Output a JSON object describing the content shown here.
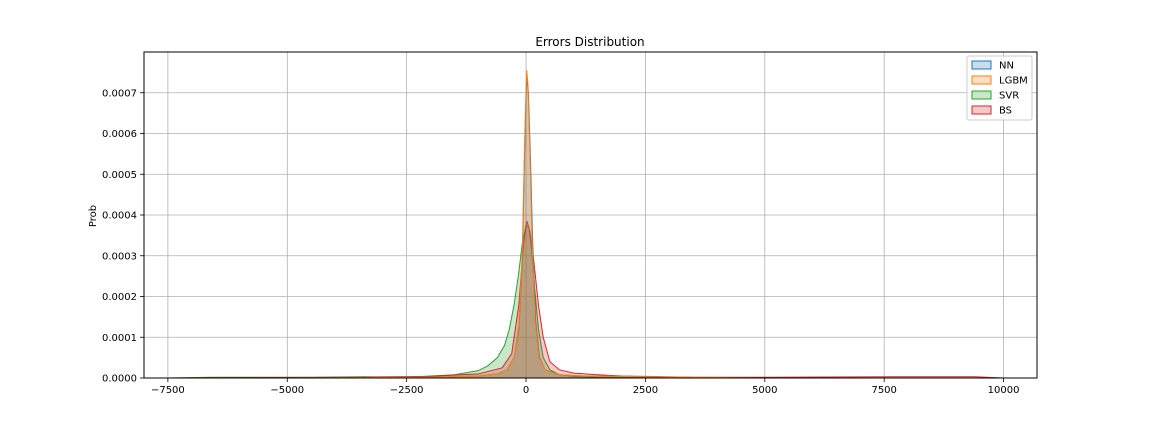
{
  "chart_data": {
    "type": "area",
    "title": "Errors Distribution",
    "xlabel": "",
    "ylabel": "Prob",
    "xlim": [
      -8000,
      10700
    ],
    "ylim": [
      0,
      0.0008
    ],
    "grid": true,
    "legend_position": "top-right",
    "x_ticks": [
      -7500,
      -5000,
      -2500,
      0,
      2500,
      5000,
      7500,
      10000
    ],
    "x_tick_labels": [
      "−7500",
      "−5000",
      "−2500",
      "0",
      "2500",
      "5000",
      "7500",
      "10000"
    ],
    "y_ticks": [
      0,
      0.0001,
      0.0002,
      0.0003,
      0.0004,
      0.0005,
      0.0006,
      0.0007
    ],
    "y_tick_labels": [
      "0.0000",
      "0.0001",
      "0.0002",
      "0.0003",
      "0.0004",
      "0.0005",
      "0.0006",
      "0.0007"
    ],
    "series": [
      {
        "name": "SVR",
        "color": "#2ca02c",
        "points": [
          [
            -7500,
            0
          ],
          [
            -6600,
            2e-06
          ],
          [
            -4500,
            2e-06
          ],
          [
            -3400,
            3e-06
          ],
          [
            -2500,
            2e-06
          ],
          [
            -1500,
            8e-06
          ],
          [
            -1000,
            1.8e-05
          ],
          [
            -800,
            3e-05
          ],
          [
            -600,
            5e-05
          ],
          [
            -450,
            8e-05
          ],
          [
            -350,
            0.00012
          ],
          [
            -250,
            0.00018
          ],
          [
            -150,
            0.00026
          ],
          [
            -80,
            0.00033
          ],
          [
            0,
            0.000375
          ],
          [
            60,
            0.00037
          ],
          [
            120,
            0.00031
          ],
          [
            180,
            0.00022
          ],
          [
            260,
            0.00012
          ],
          [
            360,
            5e-05
          ],
          [
            500,
            2e-05
          ],
          [
            700,
            8e-06
          ],
          [
            1000,
            4e-06
          ],
          [
            1500,
            2e-06
          ],
          [
            2500,
            1e-06
          ],
          [
            5000,
            0
          ],
          [
            10000,
            0
          ]
        ]
      },
      {
        "name": "BS",
        "color": "#d62728",
        "points": [
          [
            -7500,
            0
          ],
          [
            -3500,
            2e-06
          ],
          [
            -2000,
            4e-06
          ],
          [
            -1000,
            1e-05
          ],
          [
            -500,
            2.5e-05
          ],
          [
            -300,
            6e-05
          ],
          [
            -150,
            0.00018
          ],
          [
            -50,
            0.00033
          ],
          [
            20,
            0.000385
          ],
          [
            80,
            0.00036
          ],
          [
            160,
            0.00029
          ],
          [
            260,
            0.00018
          ],
          [
            360,
            0.0001
          ],
          [
            500,
            4e-05
          ],
          [
            700,
            2e-05
          ],
          [
            1000,
            1.2e-05
          ],
          [
            1500,
            8e-06
          ],
          [
            2000,
            5e-06
          ],
          [
            2500,
            4e-06
          ],
          [
            3500,
            2e-06
          ],
          [
            5000,
            2e-06
          ],
          [
            7800,
            3e-06
          ],
          [
            9400,
            3e-06
          ],
          [
            10000,
            0
          ]
        ]
      },
      {
        "name": "NN",
        "color": "#1f77b4",
        "points": [
          [
            -7500,
            0
          ],
          [
            -5000,
            0
          ],
          [
            -2000,
            2e-06
          ],
          [
            -1000,
            5e-06
          ],
          [
            -600,
            1e-05
          ],
          [
            -400,
            2e-05
          ],
          [
            -250,
            5e-05
          ],
          [
            -150,
            0.00012
          ],
          [
            -80,
            0.00028
          ],
          [
            -30,
            0.00055
          ],
          [
            0,
            0.00069
          ],
          [
            20,
            0.000735
          ],
          [
            50,
            0.0007
          ],
          [
            90,
            0.00055
          ],
          [
            140,
            0.00033
          ],
          [
            200,
            0.00014
          ],
          [
            280,
            5e-05
          ],
          [
            400,
            2e-05
          ],
          [
            700,
            8e-06
          ],
          [
            1200,
            5e-06
          ],
          [
            2000,
            4e-06
          ],
          [
            2500,
            2e-06
          ],
          [
            5000,
            0
          ],
          [
            10000,
            0
          ]
        ]
      },
      {
        "name": "LGBM",
        "color": "#ff7f0e",
        "points": [
          [
            -7500,
            0
          ],
          [
            -5000,
            0
          ],
          [
            -2000,
            2e-06
          ],
          [
            -1000,
            5e-06
          ],
          [
            -600,
            1e-05
          ],
          [
            -400,
            2e-05
          ],
          [
            -250,
            5e-05
          ],
          [
            -150,
            0.00013
          ],
          [
            -80,
            0.0003
          ],
          [
            -30,
            0.00058
          ],
          [
            0,
            0.00071
          ],
          [
            15,
            0.000755
          ],
          [
            40,
            0.00072
          ],
          [
            80,
            0.00056
          ],
          [
            130,
            0.00033
          ],
          [
            190,
            0.00014
          ],
          [
            270,
            5e-05
          ],
          [
            400,
            2e-05
          ],
          [
            700,
            8e-06
          ],
          [
            1200,
            5e-06
          ],
          [
            2000,
            4e-06
          ],
          [
            2600,
            3e-06
          ],
          [
            3500,
            2e-06
          ],
          [
            5000,
            0
          ],
          [
            10000,
            0
          ]
        ]
      }
    ],
    "legend_order": [
      "NN",
      "LGBM",
      "SVR",
      "BS"
    ]
  }
}
